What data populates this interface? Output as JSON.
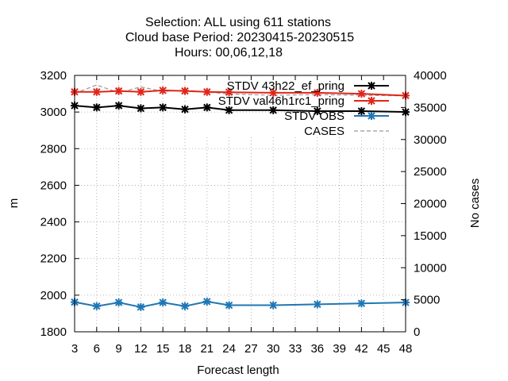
{
  "chart_data": {
    "type": "line",
    "title": [
      "Selection: ALL using   611 stations",
      "Cloud base   Period: 20230415-20230515",
      "Hours:  00,06,12,18"
    ],
    "xlabel": "Forecast length",
    "ylabel": "m",
    "y2label": "No cases",
    "xlim": [
      3,
      48
    ],
    "ylim": [
      1800,
      3200
    ],
    "y2lim": [
      0,
      40000
    ],
    "xticks": [
      3,
      6,
      9,
      12,
      15,
      18,
      21,
      24,
      27,
      30,
      33,
      36,
      39,
      42,
      45,
      48
    ],
    "yticks": [
      1800,
      2000,
      2200,
      2400,
      2600,
      2800,
      3000,
      3200
    ],
    "y2ticks": [
      0,
      5000,
      10000,
      15000,
      20000,
      25000,
      30000,
      35000,
      40000
    ],
    "grid": true,
    "legend_position": "top-right",
    "series": [
      {
        "name": "STDV 43h22_ef_pring",
        "color": "#000000",
        "axis": "y",
        "style": "solid",
        "marker": "star",
        "x": [
          3,
          6,
          9,
          12,
          15,
          18,
          21,
          24,
          30,
          36,
          42,
          48
        ],
        "values": [
          3035,
          3025,
          3035,
          3020,
          3025,
          3015,
          3025,
          3010,
          3010,
          3005,
          3005,
          3000
        ]
      },
      {
        "name": "STDV val46h1rc1_pring",
        "color": "#e0261b",
        "axis": "y",
        "style": "solid",
        "marker": "star",
        "x": [
          3,
          6,
          9,
          12,
          15,
          18,
          21,
          24,
          30,
          36,
          42,
          48
        ],
        "values": [
          3110,
          3110,
          3115,
          3110,
          3118,
          3115,
          3110,
          3108,
          3105,
          3105,
          3100,
          3090
        ]
      },
      {
        "name": "STDV OBS",
        "color": "#1f77b4",
        "axis": "y",
        "style": "solid",
        "marker": "star",
        "x": [
          3,
          6,
          9,
          12,
          15,
          18,
          21,
          24,
          30,
          36,
          42,
          48
        ],
        "values": [
          1962,
          1940,
          1960,
          1935,
          1960,
          1940,
          1965,
          1945,
          1945,
          1950,
          1955,
          1960
        ]
      },
      {
        "name": "CASES",
        "color": "#999999",
        "axis": "y2",
        "style": "dashed",
        "marker": "none",
        "x": [
          3,
          6,
          9,
          12,
          15,
          18,
          21,
          24,
          30,
          36,
          42,
          48
        ],
        "values": [
          37200,
          38500,
          37300,
          38200,
          37500,
          37700,
          37400,
          37100,
          36900,
          37000,
          36900,
          36800
        ]
      }
    ]
  }
}
